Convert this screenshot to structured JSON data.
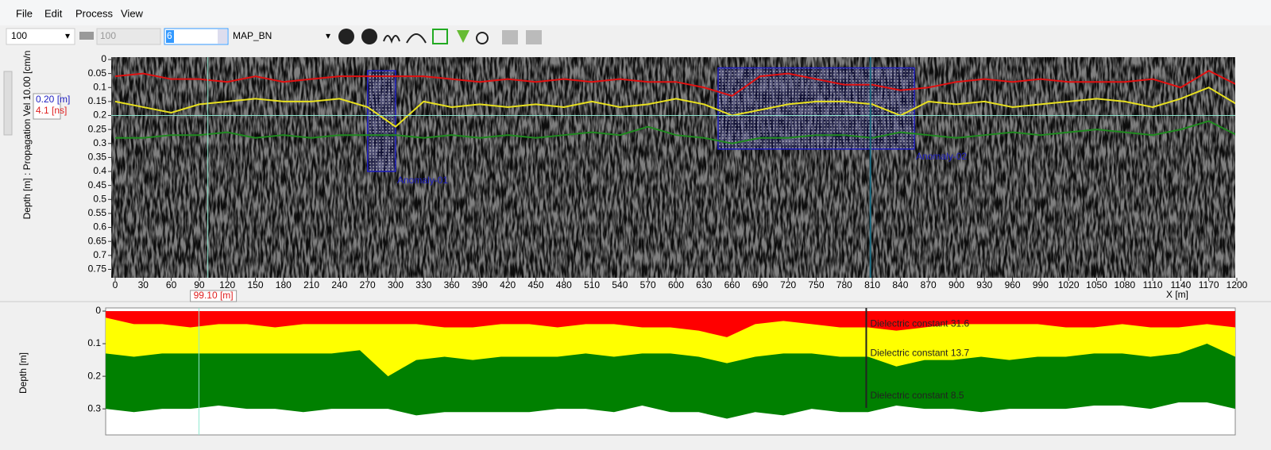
{
  "menu": [
    "File",
    "Edit",
    "Process",
    "View"
  ],
  "toolbar": {
    "zoom": "100",
    "gain": "100",
    "field": "6",
    "palette": "MAP_BN"
  },
  "chart_data": [
    {
      "type": "radargram",
      "y_label": "Depth  [m] : Propagation Vel  10.00 [cm/n",
      "x_label": "X [m]",
      "xlim": [
        0,
        1200
      ],
      "xticks": [
        0,
        30,
        60,
        90,
        120,
        150,
        180,
        210,
        240,
        270,
        300,
        330,
        360,
        390,
        420,
        450,
        480,
        510,
        540,
        570,
        600,
        630,
        660,
        690,
        720,
        750,
        780,
        810,
        840,
        870,
        900,
        930,
        960,
        990,
        1020,
        1050,
        1080,
        1110,
        1140,
        1170,
        1200
      ],
      "ylim": [
        0,
        0.78
      ],
      "yticks": [
        0,
        0.05,
        0.1,
        0.15,
        0.2,
        0.25,
        0.3,
        0.35,
        0.4,
        0.45,
        0.5,
        0.55,
        0.6,
        0.65,
        0.7,
        0.75
      ],
      "x": [
        0,
        30,
        60,
        90,
        120,
        150,
        180,
        210,
        240,
        270,
        300,
        330,
        360,
        390,
        420,
        450,
        480,
        510,
        540,
        570,
        600,
        630,
        660,
        690,
        720,
        750,
        780,
        810,
        840,
        870,
        900,
        930,
        960,
        990,
        1020,
        1050,
        1080,
        1110,
        1140,
        1170,
        1200
      ],
      "series": [
        {
          "color": "#e01010",
          "values": [
            0.06,
            0.05,
            0.07,
            0.07,
            0.08,
            0.06,
            0.08,
            0.07,
            0.06,
            0.06,
            0.06,
            0.06,
            0.07,
            0.08,
            0.07,
            0.08,
            0.07,
            0.08,
            0.07,
            0.08,
            0.08,
            0.1,
            0.13,
            0.06,
            0.05,
            0.07,
            0.09,
            0.09,
            0.11,
            0.1,
            0.08,
            0.07,
            0.08,
            0.07,
            0.08,
            0.08,
            0.08,
            0.07,
            0.1,
            0.04,
            0.09
          ]
        },
        {
          "color": "#e8e020",
          "values": [
            0.15,
            0.17,
            0.19,
            0.16,
            0.15,
            0.14,
            0.15,
            0.15,
            0.14,
            0.17,
            0.24,
            0.15,
            0.17,
            0.16,
            0.17,
            0.16,
            0.17,
            0.15,
            0.17,
            0.16,
            0.14,
            0.16,
            0.2,
            0.18,
            0.16,
            0.15,
            0.15,
            0.16,
            0.2,
            0.15,
            0.16,
            0.15,
            0.17,
            0.16,
            0.15,
            0.14,
            0.15,
            0.17,
            0.14,
            0.1,
            0.16
          ]
        },
        {
          "color": "#1f8a1f",
          "values": [
            0.28,
            0.28,
            0.27,
            0.27,
            0.26,
            0.28,
            0.27,
            0.28,
            0.27,
            0.27,
            0.27,
            0.28,
            0.27,
            0.28,
            0.27,
            0.28,
            0.27,
            0.26,
            0.27,
            0.24,
            0.27,
            0.28,
            0.3,
            0.28,
            0.28,
            0.27,
            0.27,
            0.28,
            0.26,
            0.27,
            0.28,
            0.27,
            0.26,
            0.27,
            0.26,
            0.25,
            0.26,
            0.27,
            0.25,
            0.22,
            0.27
          ]
        }
      ],
      "anomalies": [
        {
          "label": "Anomaly-01",
          "xrange": [
            270,
            300
          ],
          "yrange": [
            0.04,
            0.4
          ]
        },
        {
          "label": "Anomaly-02",
          "xrange": [
            645,
            855
          ],
          "yrange": [
            0.03,
            0.32
          ]
        }
      ],
      "cursor": {
        "x": 99.1,
        "x_label": "99.10 [m]",
        "y": 0.2,
        "y_label": "0.20 [m]",
        "time_label": "4.1 [ns]"
      },
      "marker_x": 808
    },
    {
      "type": "layers",
      "y_label": "Depth [m]",
      "xlim": [
        0,
        1200
      ],
      "ylim": [
        0,
        0.38
      ],
      "yticks": [
        0,
        0.1,
        0.2,
        0.3
      ],
      "x": [
        0,
        30,
        60,
        90,
        120,
        150,
        180,
        210,
        240,
        270,
        300,
        330,
        360,
        390,
        420,
        450,
        480,
        510,
        540,
        570,
        600,
        630,
        660,
        690,
        720,
        750,
        780,
        810,
        840,
        870,
        900,
        930,
        960,
        990,
        1020,
        1050,
        1080,
        1110,
        1140,
        1170,
        1200
      ],
      "series": [
        {
          "color": "#ff0000",
          "label": "Dielectric constant 31.6",
          "label_depth": 0.04,
          "values": [
            0.02,
            0.04,
            0.04,
            0.05,
            0.04,
            0.04,
            0.05,
            0.04,
            0.04,
            0.04,
            0.04,
            0.04,
            0.05,
            0.05,
            0.04,
            0.04,
            0.05,
            0.04,
            0.04,
            0.05,
            0.05,
            0.06,
            0.08,
            0.04,
            0.03,
            0.04,
            0.05,
            0.05,
            0.06,
            0.05,
            0.04,
            0.04,
            0.04,
            0.04,
            0.05,
            0.05,
            0.04,
            0.05,
            0.05,
            0.04,
            0.05
          ]
        },
        {
          "color": "#ffff00",
          "label": "Dielectric constant 13.7",
          "label_depth": 0.13,
          "values": [
            0.13,
            0.14,
            0.13,
            0.13,
            0.13,
            0.13,
            0.13,
            0.13,
            0.13,
            0.12,
            0.2,
            0.15,
            0.14,
            0.15,
            0.14,
            0.14,
            0.14,
            0.13,
            0.14,
            0.13,
            0.13,
            0.14,
            0.16,
            0.14,
            0.13,
            0.13,
            0.14,
            0.14,
            0.17,
            0.15,
            0.15,
            0.14,
            0.15,
            0.14,
            0.14,
            0.13,
            0.13,
            0.14,
            0.13,
            0.1,
            0.14
          ]
        },
        {
          "color": "#008000",
          "label": "Dielectric constant 8.5",
          "label_depth": 0.26,
          "values": [
            0.3,
            0.31,
            0.3,
            0.3,
            0.29,
            0.3,
            0.3,
            0.31,
            0.3,
            0.3,
            0.3,
            0.32,
            0.31,
            0.31,
            0.31,
            0.31,
            0.3,
            0.3,
            0.31,
            0.29,
            0.31,
            0.31,
            0.33,
            0.31,
            0.32,
            0.3,
            0.31,
            0.31,
            0.29,
            0.3,
            0.3,
            0.31,
            0.3,
            0.3,
            0.3,
            0.29,
            0.29,
            0.3,
            0.28,
            0.28,
            0.3
          ]
        }
      ],
      "cursor_x": 99.1,
      "marker_x": 808
    }
  ]
}
